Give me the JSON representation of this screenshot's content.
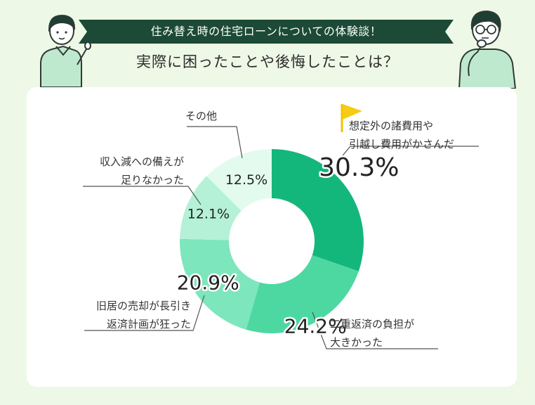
{
  "header": {
    "banner": "住み替え時の住宅ローンについての体験談！",
    "subtitle": "実際に困ったことや後悔したことは？"
  },
  "illustrations": [
    "person-pointing",
    "person-thinking",
    "flag-icon"
  ],
  "colors": {
    "banner": "#1c4a36",
    "background": "#eef8e6",
    "leader_line": "#555555"
  },
  "chart_data": {
    "type": "pie",
    "donut": true,
    "title": "",
    "slices": [
      {
        "label": "想定外の諸費用や引越し費用がかさんだ",
        "value": 30.3,
        "display": "30.3%",
        "color": "#14b77b"
      },
      {
        "label": "二重返済の負担が大きかった",
        "value": 24.2,
        "display": "24.2%",
        "color": "#4dd8a2"
      },
      {
        "label": "旧居の売却が長引き返済計画が狂った",
        "value": 20.9,
        "display": "20.9%",
        "color": "#7de6bc"
      },
      {
        "label": "収入減への備えが足りなかった",
        "value": 12.1,
        "display": "12.1%",
        "color": "#b5f1d7"
      },
      {
        "label": "その他",
        "value": 12.5,
        "display": "12.5%",
        "color": "#e3fbef"
      }
    ]
  },
  "labels": {
    "s0": [
      "想定外の諸費用や",
      "引越し費用がかさんだ"
    ],
    "s1": [
      "二重返済の負担が",
      "大きかった"
    ],
    "s2": [
      "旧居の売却が長引き",
      "返済計画が狂った"
    ],
    "s3": [
      "収入減への備えが",
      "足りなかった"
    ],
    "s4": [
      "その他"
    ]
  }
}
